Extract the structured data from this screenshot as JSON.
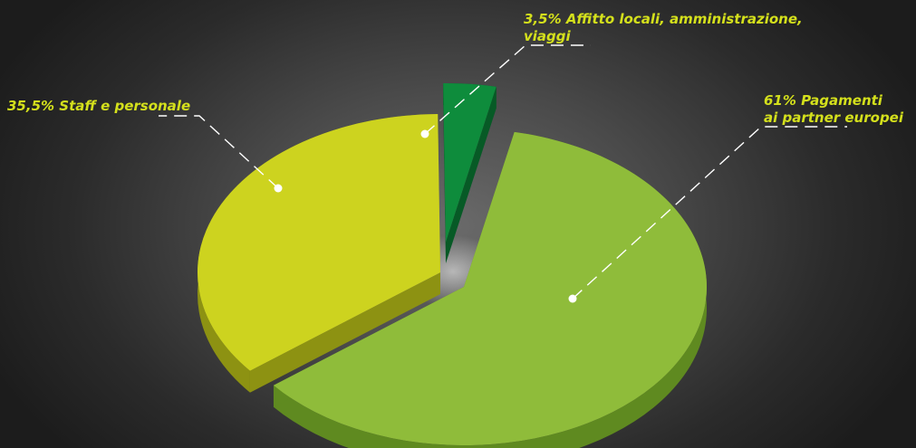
{
  "chart_data": {
    "type": "pie",
    "slices": [
      {
        "label": "Pagamenti ai partner europei",
        "value": 61,
        "display": [
          "61% Pagamenti",
          "ai partner europei"
        ],
        "color": "#8fbc3a",
        "side_color": "#5f8a20"
      },
      {
        "label": "Staff e personale",
        "value": 35.5,
        "display": [
          "35,5% Staff e personale"
        ],
        "color": "#cdd31f",
        "side_color": "#8d9212"
      },
      {
        "label": "Affitto locali, amministrazione, viaggi",
        "value": 3.5,
        "display": [
          "3,5% Affitto locali, amministrazione,",
          "viaggi"
        ],
        "color": "#0e8c3c",
        "side_color": "#075a26"
      }
    ],
    "label_color": "#d4e01c",
    "leader_color": "#ffffff",
    "style": "3d-exploded-pie"
  }
}
